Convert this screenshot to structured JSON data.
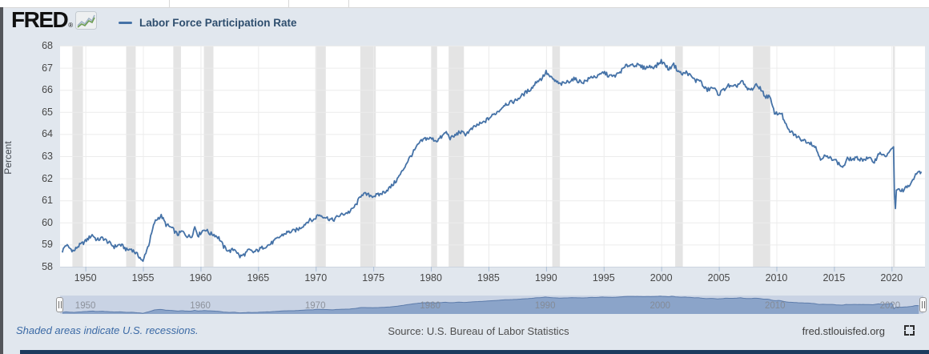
{
  "header": {
    "brand": "FRED",
    "registered_mark": "®",
    "series_label": "Labor Force Participation Rate"
  },
  "chart_data": {
    "type": "line",
    "title": "Labor Force Participation Rate",
    "ylabel": "Percent",
    "xlim": [
      1947.8,
      2022.9
    ],
    "ylim": [
      58,
      68
    ],
    "y_ticks": [
      58,
      59,
      60,
      61,
      62,
      63,
      64,
      65,
      66,
      67,
      68
    ],
    "x_ticks": [
      1950,
      1955,
      1960,
      1965,
      1970,
      1975,
      1980,
      1985,
      1990,
      1995,
      2000,
      2005,
      2010,
      2015,
      2020
    ],
    "grid": true,
    "legend_position": "top-left",
    "line_color": "#4572a7",
    "noise_amplitude": 0.09,
    "recessions": [
      [
        1948.87,
        1949.79
      ],
      [
        1953.54,
        1954.37
      ],
      [
        1957.63,
        1958.29
      ],
      [
        1960.29,
        1961.12
      ],
      [
        1969.96,
        1970.87
      ],
      [
        1973.87,
        1975.21
      ],
      [
        1980.04,
        1980.54
      ],
      [
        1981.54,
        1982.87
      ],
      [
        1990.54,
        1991.21
      ],
      [
        2001.21,
        2001.87
      ],
      [
        2007.96,
        2009.46
      ],
      [
        2020.12,
        2020.29
      ]
    ],
    "series": [
      {
        "name": "Labor Force Participation Rate",
        "points": [
          [
            1948,
            58.7
          ],
          [
            1948.3,
            59
          ],
          [
            1948.6,
            58.85
          ],
          [
            1949,
            58.7
          ],
          [
            1949.3,
            58.9
          ],
          [
            1949.6,
            59
          ],
          [
            1950,
            59.15
          ],
          [
            1950.3,
            59.3
          ],
          [
            1950.6,
            59.45
          ],
          [
            1951,
            59.2
          ],
          [
            1951.5,
            59.3
          ],
          [
            1952,
            59.1
          ],
          [
            1952.5,
            58.9
          ],
          [
            1953,
            59
          ],
          [
            1953.3,
            58.9
          ],
          [
            1953.6,
            58.75
          ],
          [
            1954,
            58.8
          ],
          [
            1954.4,
            58.6
          ],
          [
            1954.7,
            58.45
          ],
          [
            1955,
            58.2
          ],
          [
            1955.2,
            58.6
          ],
          [
            1955.5,
            59
          ],
          [
            1955.75,
            59.5
          ],
          [
            1956,
            60
          ],
          [
            1956.3,
            60.2
          ],
          [
            1956.6,
            60.3
          ],
          [
            1957,
            59.9
          ],
          [
            1957.5,
            59.75
          ],
          [
            1958,
            59.45
          ],
          [
            1958.4,
            59.6
          ],
          [
            1958.8,
            59.4
          ],
          [
            1959.2,
            59.35
          ],
          [
            1959.5,
            59.8
          ],
          [
            1959.8,
            59.4
          ],
          [
            1960.1,
            59.6
          ],
          [
            1960.4,
            59.7
          ],
          [
            1960.8,
            59.5
          ],
          [
            1961.2,
            59.45
          ],
          [
            1961.6,
            59.3
          ],
          [
            1962,
            58.9
          ],
          [
            1962.5,
            58.7
          ],
          [
            1963,
            58.8
          ],
          [
            1963.4,
            58.45
          ],
          [
            1963.8,
            58.55
          ],
          [
            1964.2,
            58.75
          ],
          [
            1964.6,
            58.65
          ],
          [
            1965,
            58.75
          ],
          [
            1965.5,
            58.9
          ],
          [
            1966,
            59
          ],
          [
            1966.5,
            59.2
          ],
          [
            1967,
            59.4
          ],
          [
            1967.5,
            59.55
          ],
          [
            1968,
            59.6
          ],
          [
            1968.5,
            59.7
          ],
          [
            1969,
            59.9
          ],
          [
            1969.4,
            60.1
          ],
          [
            1969.8,
            60.1
          ],
          [
            1970.2,
            60.35
          ],
          [
            1970.6,
            60.3
          ],
          [
            1971,
            60.2
          ],
          [
            1971.5,
            60.1
          ],
          [
            1972,
            60.3
          ],
          [
            1972.5,
            60.4
          ],
          [
            1973,
            60.5
          ],
          [
            1973.5,
            60.8
          ],
          [
            1974,
            61.3
          ],
          [
            1974.5,
            61.25
          ],
          [
            1975,
            61.2
          ],
          [
            1975.5,
            61.25
          ],
          [
            1976,
            61.4
          ],
          [
            1976.5,
            61.6
          ],
          [
            1977,
            61.9
          ],
          [
            1977.5,
            62.3
          ],
          [
            1978,
            62.8
          ],
          [
            1978.5,
            63.2
          ],
          [
            1979,
            63.6
          ],
          [
            1979.5,
            63.8
          ],
          [
            1980,
            63.8
          ],
          [
            1980.5,
            63.7
          ],
          [
            1981,
            63.9
          ],
          [
            1981.3,
            64.1
          ],
          [
            1981.7,
            63.8
          ],
          [
            1982,
            63.9
          ],
          [
            1982.5,
            64.1
          ],
          [
            1983,
            64
          ],
          [
            1983.5,
            64.2
          ],
          [
            1984,
            64.4
          ],
          [
            1984.5,
            64.5
          ],
          [
            1985,
            64.7
          ],
          [
            1985.5,
            64.9
          ],
          [
            1986,
            65.1
          ],
          [
            1986.4,
            65.35
          ],
          [
            1986.8,
            65.4
          ],
          [
            1987.3,
            65.5
          ],
          [
            1987.8,
            65.7
          ],
          [
            1988.3,
            65.9
          ],
          [
            1988.8,
            66.1
          ],
          [
            1989.2,
            66.4
          ],
          [
            1989.6,
            66.5
          ],
          [
            1990,
            66.8
          ],
          [
            1990.4,
            66.55
          ],
          [
            1990.8,
            66.4
          ],
          [
            1991.2,
            66.25
          ],
          [
            1991.6,
            66.3
          ],
          [
            1992,
            66.4
          ],
          [
            1992.4,
            66.5
          ],
          [
            1992.8,
            66.4
          ],
          [
            1993.2,
            66.35
          ],
          [
            1993.6,
            66.45
          ],
          [
            1994,
            66.6
          ],
          [
            1994.5,
            66.6
          ],
          [
            1995,
            66.8
          ],
          [
            1995.4,
            66.65
          ],
          [
            1995.8,
            66.6
          ],
          [
            1996.2,
            66.7
          ],
          [
            1996.6,
            66.9
          ],
          [
            1997,
            67.1
          ],
          [
            1997.5,
            67.15
          ],
          [
            1998,
            67.1
          ],
          [
            1998.5,
            67
          ],
          [
            1999,
            67.05
          ],
          [
            1999.5,
            67.05
          ],
          [
            2000,
            67.3
          ],
          [
            2000.4,
            67.1
          ],
          [
            2000.7,
            66.9
          ],
          [
            2001,
            67.2
          ],
          [
            2001.4,
            66.9
          ],
          [
            2001.8,
            66.7
          ],
          [
            2002.2,
            66.8
          ],
          [
            2002.6,
            66.6
          ],
          [
            2003,
            66.4
          ],
          [
            2003.3,
            66.5
          ],
          [
            2003.7,
            66.1
          ],
          [
            2004,
            66
          ],
          [
            2004.5,
            66.1
          ],
          [
            2005,
            65.8
          ],
          [
            2005.4,
            66
          ],
          [
            2005.8,
            66.2
          ],
          [
            2006.2,
            66.1
          ],
          [
            2006.6,
            66.2
          ],
          [
            2007,
            66.4
          ],
          [
            2007.4,
            66.05
          ],
          [
            2007.8,
            66
          ],
          [
            2008.2,
            66.2
          ],
          [
            2008.6,
            66.1
          ],
          [
            2009,
            65.7
          ],
          [
            2009.4,
            65.7
          ],
          [
            2009.8,
            65
          ],
          [
            2010.1,
            64.9
          ],
          [
            2010.4,
            65
          ],
          [
            2010.7,
            64.55
          ],
          [
            2011,
            64.2
          ],
          [
            2011.5,
            64
          ],
          [
            2012,
            63.8
          ],
          [
            2012.5,
            63.7
          ],
          [
            2013,
            63.6
          ],
          [
            2013.4,
            63.4
          ],
          [
            2013.8,
            62.9
          ],
          [
            2014.2,
            63
          ],
          [
            2014.6,
            62.9
          ],
          [
            2015,
            62.9
          ],
          [
            2015.4,
            62.65
          ],
          [
            2015.8,
            62.5
          ],
          [
            2016.2,
            62.9
          ],
          [
            2016.6,
            62.85
          ],
          [
            2017,
            62.9
          ],
          [
            2017.5,
            62.85
          ],
          [
            2018,
            62.9
          ],
          [
            2018.5,
            62.75
          ],
          [
            2019,
            63.2
          ],
          [
            2019.4,
            62.95
          ],
          [
            2019.8,
            63.2
          ],
          [
            2020.05,
            63.3
          ],
          [
            2020.17,
            63.4
          ],
          [
            2020.29,
            60.2
          ],
          [
            2020.42,
            61.5
          ],
          [
            2020.6,
            61.45
          ],
          [
            2020.8,
            61.5
          ],
          [
            2021,
            61.4
          ],
          [
            2021.3,
            61.6
          ],
          [
            2021.6,
            61.7
          ],
          [
            2021.9,
            61.9
          ],
          [
            2022.1,
            62.2
          ],
          [
            2022.3,
            62.4
          ],
          [
            2022.45,
            62.2
          ],
          [
            2022.6,
            62.3
          ]
        ]
      }
    ]
  },
  "navigator": {
    "labels": [
      1950,
      1960,
      1970,
      1980,
      1990,
      2000,
      2010,
      2020
    ],
    "ylim": [
      57.9,
      67.6
    ]
  },
  "footer": {
    "note": "Shaded areas indicate U.S. recessions.",
    "source": "Source: U.S. Bureau of Labor Statistics",
    "site": "fred.stlouisfed.org"
  },
  "colors": {
    "accent_line": "#4572a7",
    "recession_band": "#e4e4e4",
    "grid": "#ececec",
    "axis_line": "#ccd4df",
    "tick_mark": "#a9bcd4",
    "plot_bg": "#ffffff",
    "widget_bg": "#e1e7ee",
    "nav_track": "#c9d3e4",
    "nav_area_fill": "#8ba4c9",
    "nav_area_line": "#5d7cab",
    "nav_label": "#83878f",
    "footer_link": "#3a69a5",
    "bottom_bar": "#1c3b5e"
  }
}
